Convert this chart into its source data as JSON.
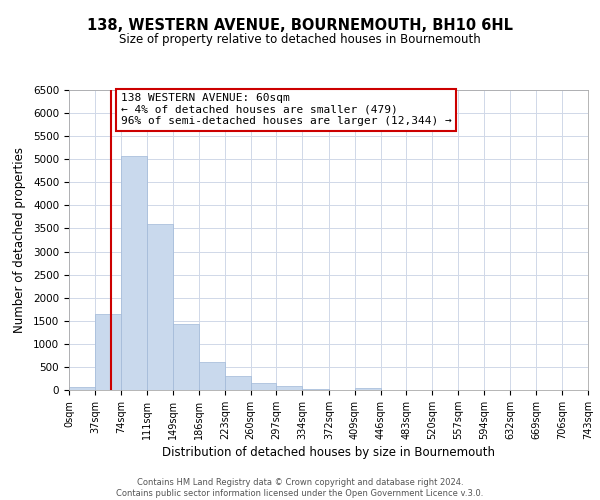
{
  "title": "138, WESTERN AVENUE, BOURNEMOUTH, BH10 6HL",
  "subtitle": "Size of property relative to detached houses in Bournemouth",
  "xlabel": "Distribution of detached houses by size in Bournemouth",
  "ylabel": "Number of detached properties",
  "bar_edges": [
    0,
    37,
    74,
    111,
    149,
    186,
    223,
    260,
    297,
    334,
    372,
    409,
    446,
    483,
    520,
    557,
    594,
    632,
    669,
    706,
    743
  ],
  "bar_heights": [
    60,
    1650,
    5080,
    3600,
    1420,
    610,
    300,
    150,
    80,
    30,
    10,
    50,
    0,
    0,
    0,
    0,
    0,
    0,
    0,
    0
  ],
  "bar_color": "#c9d9ed",
  "bar_edge_color": "#a0b8d8",
  "property_line_x": 60,
  "property_line_color": "#cc0000",
  "ylim": [
    0,
    6500
  ],
  "annotation_title": "138 WESTERN AVENUE: 60sqm",
  "annotation_line1": "← 4% of detached houses are smaller (479)",
  "annotation_line2": "96% of semi-detached houses are larger (12,344) →",
  "annotation_box_color": "#ffffff",
  "annotation_box_edge": "#cc0000",
  "footer_line1": "Contains HM Land Registry data © Crown copyright and database right 2024.",
  "footer_line2": "Contains public sector information licensed under the Open Government Licence v.3.0.",
  "tick_labels": [
    "0sqm",
    "37sqm",
    "74sqm",
    "111sqm",
    "149sqm",
    "186sqm",
    "223sqm",
    "260sqm",
    "297sqm",
    "334sqm",
    "372sqm",
    "409sqm",
    "446sqm",
    "483sqm",
    "520sqm",
    "557sqm",
    "594sqm",
    "632sqm",
    "669sqm",
    "706sqm",
    "743sqm"
  ],
  "background_color": "#ffffff",
  "grid_color": "#d0d8e8"
}
